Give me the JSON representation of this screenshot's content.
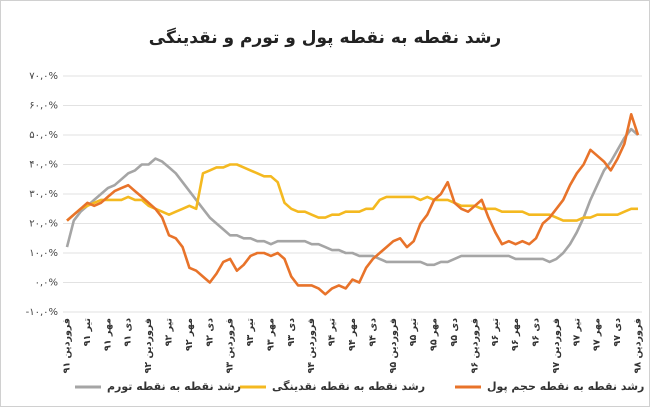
{
  "chart_data": {
    "type": "line",
    "title": "رشد نقطه به نقطه پول و تورم  و نقدینگی",
    "categories": [
      "فروردین ۹۱",
      null,
      null,
      "تیر ۹۱",
      null,
      null,
      "مهر ۹۱",
      null,
      null,
      "دی ۹۱",
      null,
      null,
      "فروردین ۹۲",
      null,
      null,
      "تیر ۹۲",
      null,
      null,
      "مهر ۹۲",
      null,
      null,
      "دی ۹۲",
      null,
      null,
      "فروردین ۹۳",
      null,
      null,
      "تیر ۹۳",
      null,
      null,
      "مهر ۹۳",
      null,
      null,
      "دی ۹۳",
      null,
      null,
      "فروردین ۹۴",
      null,
      null,
      "تیر ۹۴",
      null,
      null,
      "مهر ۹۴",
      null,
      null,
      "دی ۹۴",
      null,
      null,
      "فروردین ۹۵",
      null,
      null,
      "تیر ۹۵",
      null,
      null,
      "مهر ۹۵",
      null,
      null,
      "دی ۹۵",
      null,
      null,
      "فروردین ۹۶",
      null,
      null,
      "تیر ۹۶",
      null,
      null,
      "مهر ۹۶",
      null,
      null,
      "دی ۹۶",
      null,
      null,
      "فروردین ۹۷",
      null,
      null,
      "تیر ۹۷",
      null,
      null,
      "مهر ۹۷",
      null,
      null,
      "دی ۹۷",
      null,
      null,
      "فروردین ۹۸"
    ],
    "series": [
      {
        "name": "رشد نقطه به نقطه حجم پول",
        "color": "#e8732a",
        "values": [
          21,
          23,
          25,
          27,
          26,
          27,
          29,
          31,
          32,
          33,
          31,
          29,
          27,
          25,
          22,
          16,
          15,
          12,
          5,
          4,
          2,
          0,
          3,
          7,
          8,
          4,
          6,
          9,
          10,
          10,
          9,
          10,
          8,
          2,
          -1,
          -1,
          -1,
          -2,
          -4,
          -2,
          -1,
          -2,
          1,
          0,
          5,
          8,
          10,
          12,
          14,
          15,
          12,
          14,
          20,
          23,
          28,
          30,
          34,
          27,
          25,
          24,
          26,
          28,
          22,
          17,
          13,
          14,
          13,
          14,
          13,
          15,
          20,
          22,
          25,
          28,
          33,
          37,
          40,
          45,
          43,
          41,
          38,
          42,
          47,
          57,
          50
        ]
      },
      {
        "name": "رشد نقطه به نقطه نقدینگی",
        "color": "#f4b920",
        "values": [
          21,
          23,
          25,
          26,
          27,
          28,
          28,
          28,
          28,
          29,
          28,
          28,
          26,
          25,
          24,
          23,
          24,
          25,
          26,
          25,
          37,
          38,
          39,
          39,
          40,
          40,
          39,
          38,
          37,
          36,
          36,
          34,
          27,
          25,
          24,
          24,
          23,
          22,
          22,
          23,
          23,
          24,
          24,
          24,
          25,
          25,
          28,
          29,
          29,
          29,
          29,
          29,
          28,
          29,
          28,
          28,
          28,
          27,
          26,
          26,
          26,
          25,
          25,
          25,
          24,
          24,
          24,
          24,
          23,
          23,
          23,
          23,
          22,
          21,
          21,
          21,
          22,
          22,
          23,
          23,
          23,
          23,
          24,
          25,
          25
        ]
      },
      {
        "name": "رشد نقطه به نقطه تورم",
        "color": "#a5a5a5",
        "values": [
          12,
          21,
          24,
          26,
          28,
          30,
          32,
          33,
          35,
          37,
          38,
          40,
          40,
          42,
          41,
          39,
          37,
          34,
          31,
          28,
          25,
          22,
          20,
          18,
          16,
          16,
          15,
          15,
          14,
          14,
          13,
          14,
          14,
          14,
          14,
          14,
          13,
          13,
          12,
          11,
          11,
          10,
          10,
          9,
          9,
          9,
          8,
          7,
          7,
          7,
          7,
          7,
          7,
          6,
          6,
          7,
          7,
          8,
          9,
          9,
          9,
          9,
          9,
          9,
          9,
          9,
          8,
          8,
          8,
          8,
          8,
          7,
          8,
          10,
          13,
          17,
          22,
          28,
          33,
          38,
          41,
          45,
          49,
          52,
          50
        ]
      }
    ],
    "ylim": [
      -10,
      70
    ],
    "yticks": [
      {
        "value": -10,
        "label": "-۱۰,۰%"
      },
      {
        "value": 0,
        "label": "۰,۰%"
      },
      {
        "value": 10,
        "label": "۱۰,۰%"
      },
      {
        "value": 20,
        "label": "۲۰,۰%"
      },
      {
        "value": 30,
        "label": "۳۰,۰%"
      },
      {
        "value": 40,
        "label": "۴۰,۰%"
      },
      {
        "value": 50,
        "label": "۵۰,۰%"
      },
      {
        "value": 60,
        "label": "۶۰,۰%"
      },
      {
        "value": 70,
        "label": "۷۰,۰%"
      }
    ],
    "grid": true
  }
}
